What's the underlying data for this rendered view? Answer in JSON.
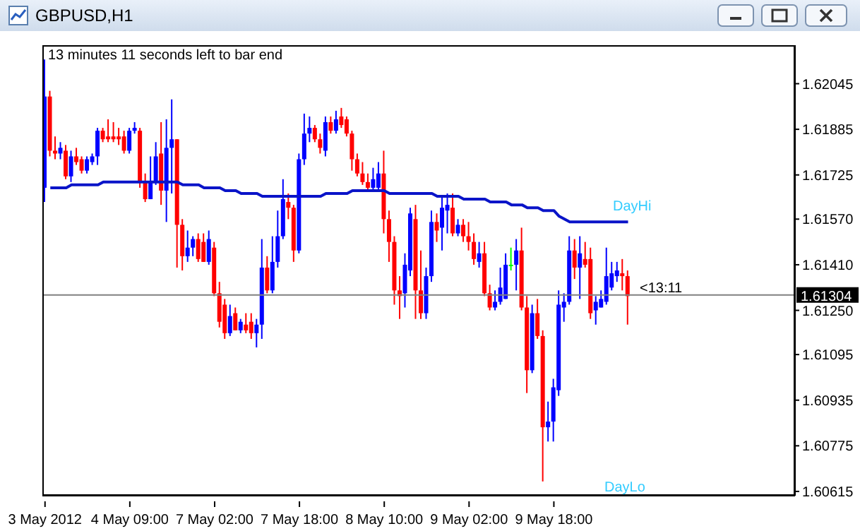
{
  "chart_data": {
    "type": "candlestick",
    "title": "GBPUSD,H1",
    "categories": [
      "3 May 2012",
      null,
      null,
      null,
      null,
      null,
      null,
      null,
      null,
      null,
      null,
      null,
      null,
      null,
      null,
      null,
      "4 May 09:00",
      null,
      null,
      null,
      null,
      null,
      null,
      null,
      null,
      null,
      null,
      null,
      null,
      null,
      null,
      null,
      "7 May 02:00",
      null,
      null,
      null,
      null,
      null,
      null,
      null,
      null,
      null,
      null,
      null,
      null,
      null,
      null,
      null,
      "7 May 18:00",
      null,
      null,
      null,
      null,
      null,
      null,
      null,
      null,
      null,
      null,
      null,
      null,
      null,
      null,
      null,
      "8 May 10:00",
      null,
      null,
      null,
      null,
      null,
      null,
      null,
      null,
      null,
      null,
      null,
      null,
      null,
      null,
      null,
      "9 May 02:00",
      null,
      null,
      null,
      null,
      null,
      null,
      null,
      null,
      null,
      null,
      null,
      null,
      null,
      null,
      null,
      "9 May 18:00",
      null,
      null,
      null,
      null,
      null,
      null,
      null,
      null,
      null,
      null,
      null,
      null,
      null,
      null,
      null,
      null,
      null,
      null,
      null,
      null,
      null,
      null,
      null,
      null,
      null,
      null,
      null,
      null,
      null,
      null,
      null,
      null,
      null,
      null,
      null,
      null,
      null,
      null,
      null,
      null,
      null,
      null,
      null,
      null,
      null
    ],
    "ohlc": [
      [
        1.6168,
        1.6213,
        1.6163,
        1.62
      ],
      [
        1.62,
        1.6202,
        1.6179,
        1.6181
      ],
      [
        1.6181,
        1.6186,
        1.6178,
        1.618
      ],
      [
        1.618,
        1.6184,
        1.6178,
        1.6182
      ],
      [
        1.6181,
        1.6183,
        1.6171,
        1.6172
      ],
      [
        1.6172,
        1.6181,
        1.617,
        1.6179
      ],
      [
        1.6179,
        1.6182,
        1.6176,
        1.6177
      ],
      [
        1.6178,
        1.6179,
        1.6173,
        1.6174
      ],
      [
        1.6174,
        1.6179,
        1.6173,
        1.6178
      ],
      [
        1.6177,
        1.618,
        1.6176,
        1.6179
      ],
      [
        1.6179,
        1.6189,
        1.6176,
        1.6188
      ],
      [
        1.6188,
        1.6189,
        1.6184,
        1.6185
      ],
      [
        1.6186,
        1.6192,
        1.6184,
        1.6185
      ],
      [
        1.6186,
        1.6191,
        1.6184,
        1.6185
      ],
      [
        1.6186,
        1.6189,
        1.6183,
        1.6185
      ],
      [
        1.6186,
        1.6188,
        1.618,
        1.6181
      ],
      [
        1.6181,
        1.6189,
        1.618,
        1.6188
      ],
      [
        1.6188,
        1.6191,
        1.6187,
        1.6189
      ],
      [
        1.6188,
        1.6189,
        1.6168,
        1.617
      ],
      [
        1.617,
        1.6173,
        1.6163,
        1.6164
      ],
      [
        1.6164,
        1.6179,
        1.6164,
        1.617
      ],
      [
        1.617,
        1.6184,
        1.6169,
        1.6179
      ],
      [
        1.618,
        1.6191,
        1.6162,
        1.6167
      ],
      [
        1.6167,
        1.6192,
        1.6156,
        1.6182
      ],
      [
        1.6182,
        1.6199,
        1.6166,
        1.6185
      ],
      [
        1.6185,
        1.6185,
        1.614,
        1.6155
      ],
      [
        1.6155,
        1.6157,
        1.6139,
        1.6144
      ],
      [
        1.6144,
        1.6153,
        1.6142,
        1.6147
      ],
      [
        1.6147,
        1.6151,
        1.6144,
        1.615
      ],
      [
        1.615,
        1.6152,
        1.6142,
        1.6143
      ],
      [
        1.6149,
        1.6152,
        1.6142,
        1.6142
      ],
      [
        1.6142,
        1.6153,
        1.6141,
        1.615
      ],
      [
        1.6147,
        1.6149,
        1.613,
        1.6131
      ],
      [
        1.6131,
        1.6135,
        1.6119,
        1.6121
      ],
      [
        1.6127,
        1.6129,
        1.6115,
        1.6117
      ],
      [
        1.6117,
        1.6127,
        1.6116,
        1.6123
      ],
      [
        1.6124,
        1.6126,
        1.6118,
        1.6118
      ],
      [
        1.6118,
        1.6122,
        1.6117,
        1.6121
      ],
      [
        1.612,
        1.6124,
        1.6117,
        1.6118
      ],
      [
        1.6121,
        1.6124,
        1.6115,
        1.6117
      ],
      [
        1.6117,
        1.6122,
        1.6112,
        1.612
      ],
      [
        1.612,
        1.615,
        1.6115,
        1.614
      ],
      [
        1.614,
        1.6144,
        1.6131,
        1.6132
      ],
      [
        1.6132,
        1.6151,
        1.6131,
        1.6142
      ],
      [
        1.6142,
        1.616,
        1.614,
        1.6151
      ],
      [
        1.6151,
        1.6171,
        1.615,
        1.6164
      ],
      [
        1.6163,
        1.6166,
        1.6157,
        1.6161
      ],
      [
        1.6161,
        1.6162,
        1.6142,
        1.6146
      ],
      [
        1.6146,
        1.618,
        1.6145,
        1.6178
      ],
      [
        1.6178,
        1.6194,
        1.6176,
        1.6187
      ],
      [
        1.6187,
        1.6193,
        1.6184,
        1.6189
      ],
      [
        1.6189,
        1.619,
        1.6184,
        1.6185
      ],
      [
        1.6185,
        1.6187,
        1.618,
        1.6182
      ],
      [
        1.6181,
        1.6193,
        1.6179,
        1.6191
      ],
      [
        1.6191,
        1.6193,
        1.6187,
        1.6188
      ],
      [
        1.6188,
        1.6195,
        1.6187,
        1.6192
      ],
      [
        1.6193,
        1.6196,
        1.6189,
        1.619
      ],
      [
        1.6192,
        1.6193,
        1.6186,
        1.6187
      ],
      [
        1.6187,
        1.6188,
        1.6174,
        1.6178
      ],
      [
        1.6178,
        1.618,
        1.6172,
        1.6173
      ],
      [
        1.6173,
        1.6177,
        1.6169,
        1.617
      ],
      [
        1.617,
        1.6173,
        1.6167,
        1.6168
      ],
      [
        1.6168,
        1.6175,
        1.6167,
        1.6171
      ],
      [
        1.6168,
        1.6177,
        1.6167,
        1.6173
      ],
      [
        1.6173,
        1.6181,
        1.6152,
        1.6157
      ],
      [
        1.6157,
        1.616,
        1.6142,
        1.6149
      ],
      [
        1.6149,
        1.6151,
        1.6127,
        1.6132
      ],
      [
        1.6132,
        1.6137,
        1.6122,
        1.613
      ],
      [
        1.6131,
        1.6145,
        1.6126,
        1.6141
      ],
      [
        1.6139,
        1.6161,
        1.6137,
        1.6159
      ],
      [
        1.6157,
        1.6162,
        1.6122,
        1.6132
      ],
      [
        1.6132,
        1.6146,
        1.6122,
        1.6124
      ],
      [
        1.6124,
        1.614,
        1.6122,
        1.6137
      ],
      [
        1.6137,
        1.616,
        1.6135,
        1.6156
      ],
      [
        1.6156,
        1.6159,
        1.6149,
        1.6153
      ],
      [
        1.6154,
        1.6165,
        1.6146,
        1.6161
      ],
      [
        1.616,
        1.6166,
        1.6152,
        1.6162
      ],
      [
        1.6161,
        1.6166,
        1.6151,
        1.6152
      ],
      [
        1.6152,
        1.6157,
        1.6151,
        1.6155
      ],
      [
        1.6155,
        1.6157,
        1.6149,
        1.6151
      ],
      [
        1.6151,
        1.6156,
        1.6146,
        1.6149
      ],
      [
        1.6149,
        1.6152,
        1.6141,
        1.6143
      ],
      [
        1.6142,
        1.6149,
        1.614,
        1.6145
      ],
      [
        1.6145,
        1.6149,
        1.613,
        1.6131
      ],
      [
        1.6131,
        1.6134,
        1.6125,
        1.6126
      ],
      [
        1.6126,
        1.6132,
        1.6125,
        1.6128
      ],
      [
        1.6128,
        1.614,
        1.6127,
        1.6133
      ],
      [
        1.6129,
        1.6145,
        1.6129,
        1.6141
      ],
      [
        1.6141,
        1.6147,
        1.6139,
        1.6141
      ],
      [
        1.6141,
        1.615,
        1.6132,
        1.6146
      ],
      [
        1.6146,
        1.6154,
        1.6125,
        1.6126
      ],
      [
        1.6126,
        1.613,
        1.6096,
        1.6104
      ],
      [
        1.6104,
        1.6127,
        1.6103,
        1.6124
      ],
      [
        1.6124,
        1.6129,
        1.6115,
        1.6116
      ],
      [
        1.6116,
        1.6118,
        1.6065,
        1.6084
      ],
      [
        1.6084,
        1.6093,
        1.6079,
        1.6086
      ],
      [
        1.6086,
        1.6101,
        1.6079,
        1.6098
      ],
      [
        1.6097,
        1.6132,
        1.6095,
        1.6127
      ],
      [
        1.6126,
        1.6131,
        1.6121,
        1.6128
      ],
      [
        1.6128,
        1.6151,
        1.6127,
        1.6146
      ],
      [
        1.6146,
        1.615,
        1.6136,
        1.614
      ],
      [
        1.614,
        1.6151,
        1.6129,
        1.6145
      ],
      [
        1.6143,
        1.6149,
        1.614,
        1.6141
      ],
      [
        1.6143,
        1.6147,
        1.6122,
        1.6124
      ],
      [
        1.6125,
        1.613,
        1.612,
        1.6128
      ],
      [
        1.6126,
        1.6132,
        1.6126,
        1.6129
      ],
      [
        1.6128,
        1.6147,
        1.6127,
        1.6137
      ],
      [
        1.6133,
        1.6142,
        1.6132,
        1.6138
      ],
      [
        1.6137,
        1.6142,
        1.6135,
        1.6139
      ],
      [
        1.6138,
        1.6143,
        1.6132,
        1.6137
      ],
      [
        1.6137,
        1.6139,
        1.612,
        1.613
      ],
      null,
      null,
      null,
      null,
      null,
      null,
      null,
      null,
      null,
      null,
      null,
      null,
      null,
      null,
      null,
      null,
      null,
      null,
      null,
      null,
      null,
      null,
      null,
      null,
      null,
      null,
      null,
      null,
      null,
      null,
      null
    ],
    "colors": [
      "#0000ff",
      "#ff0000",
      "#ff0000",
      "#0000ff",
      "#ff0000",
      "#0000ff",
      "#ff0000",
      "#ff0000",
      "#0000ff",
      "#0000ff",
      "#0000ff",
      "#ff0000",
      "#ff0000",
      "#ff0000",
      "#ff0000",
      "#ff0000",
      "#0000ff",
      "#0000ff",
      "#ff0000",
      "#ff0000",
      "#0000ff",
      "#0000ff",
      "#ff0000",
      "#0000ff",
      "#0000ff",
      "#ff0000",
      "#ff0000",
      "#0000ff",
      "#0000ff",
      "#ff0000",
      "#ff0000",
      "#0000ff",
      "#ff0000",
      "#ff0000",
      "#ff0000",
      "#0000ff",
      "#ff0000",
      "#0000ff",
      "#ff0000",
      "#ff0000",
      "#0000ff",
      "#0000ff",
      "#ff0000",
      "#0000ff",
      "#0000ff",
      "#0000ff",
      "#ff0000",
      "#ff0000",
      "#0000ff",
      "#0000ff",
      "#0000ff",
      "#ff0000",
      "#ff0000",
      "#0000ff",
      "#ff0000",
      "#0000ff",
      "#ff0000",
      "#ff0000",
      "#ff0000",
      "#ff0000",
      "#ff0000",
      "#ff0000",
      "#0000ff",
      "#0000ff",
      "#ff0000",
      "#ff0000",
      "#ff0000",
      "#ff0000",
      "#0000ff",
      "#0000ff",
      "#ff0000",
      "#ff0000",
      "#0000ff",
      "#0000ff",
      "#ff0000",
      "#0000ff",
      "#0000ff",
      "#ff0000",
      "#0000ff",
      "#ff0000",
      "#ff0000",
      "#ff0000",
      "#0000ff",
      "#ff0000",
      "#ff0000",
      "#0000ff",
      "#0000ff",
      "#0000ff",
      "#00ff00",
      "#0000ff",
      "#ff0000",
      "#ff0000",
      "#0000ff",
      "#ff0000",
      "#ff0000",
      "#0000ff",
      "#0000ff",
      "#0000ff",
      "#0000ff",
      "#0000ff",
      "#ff0000",
      "#0000ff",
      "#ff0000",
      "#ff0000",
      "#0000ff",
      "#0000ff",
      "#0000ff",
      "#0000ff",
      "#0000ff",
      "#ff0000",
      "#ff0000",
      null,
      null,
      null,
      null,
      null,
      null,
      null,
      null,
      null,
      null,
      null,
      null,
      null,
      null,
      null,
      null,
      null,
      null,
      null,
      null,
      null,
      null,
      null,
      null,
      null,
      null,
      null,
      null,
      null,
      null,
      null
    ],
    "series": [
      {
        "type": "line",
        "color": "#0a14c8",
        "values": [
          null,
          1.6168,
          1.6168,
          1.6168,
          1.6168,
          1.6169,
          1.6169,
          1.6169,
          1.6169,
          1.6169,
          1.6169,
          1.617,
          1.617,
          1.617,
          1.617,
          1.617,
          1.617,
          1.617,
          1.617,
          1.617,
          1.617,
          1.617,
          1.617,
          1.617,
          1.617,
          1.617,
          1.6169,
          1.6169,
          1.6169,
          1.6169,
          1.6168,
          1.6168,
          1.6168,
          1.6168,
          1.6167,
          1.6167,
          1.6167,
          1.6166,
          1.6166,
          1.6166,
          1.6166,
          1.6165,
          1.6165,
          1.6165,
          1.6165,
          1.6165,
          1.6165,
          1.6165,
          1.6165,
          1.6165,
          1.6165,
          1.6165,
          1.6165,
          1.6166,
          1.6166,
          1.6166,
          1.6166,
          1.6166,
          1.6167,
          1.6167,
          1.6167,
          1.6167,
          1.6167,
          1.6167,
          1.6167,
          1.6166,
          1.6166,
          1.6166,
          1.6166,
          1.6166,
          1.6166,
          1.6166,
          1.6166,
          1.6166,
          1.6165,
          1.6165,
          1.6165,
          1.6165,
          1.6165,
          1.6164,
          1.6164,
          1.6164,
          1.6164,
          1.6164,
          1.6163,
          1.6163,
          1.6163,
          1.6163,
          1.6162,
          1.6162,
          1.6162,
          1.6161,
          1.6161,
          1.6161,
          1.616,
          1.616,
          1.616,
          1.6158,
          1.6157,
          1.6156,
          1.6156,
          1.6156,
          1.6156,
          1.6156,
          1.6156,
          1.6156,
          1.6156,
          1.6156,
          1.6156,
          1.6156,
          1.6156,
          null,
          null,
          null,
          null,
          null,
          null,
          null,
          null,
          null,
          null,
          null,
          null,
          null,
          null,
          null,
          null,
          null,
          null,
          null,
          null,
          null,
          null,
          null,
          null,
          null,
          null,
          null,
          null,
          null,
          null,
          null
        ]
      }
    ],
    "ylim": [
      1.606,
      1.6218
    ],
    "yticks": [
      1.62045,
      1.61885,
      1.61725,
      {
        "value": 1.6157,
        "label": "1.61570"
      },
      {
        "value": 1.6141,
        "label": "1.61410"
      },
      {
        "value": 1.6125,
        "label": "1.61250"
      },
      1.61095,
      1.60935,
      1.60775,
      1.60615
    ],
    "ref_lines": [
      {
        "axis": "y",
        "value": 1.61304,
        "label": "1.61304",
        "color": "#808080"
      }
    ],
    "annotations": [
      "13 minutes 11 seconds left to bar end",
      "<13:11",
      "DayHi",
      "DayLo"
    ]
  }
}
